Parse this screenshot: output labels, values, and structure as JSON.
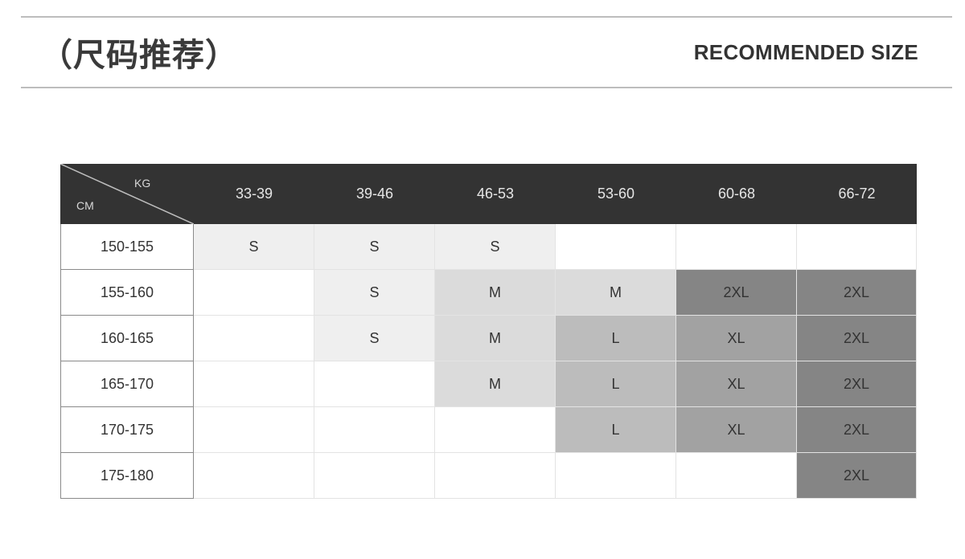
{
  "header": {
    "title_cn": "（尺码推荐）",
    "title_en": "RECOMMENDED SIZE"
  },
  "table": {
    "corner": {
      "col_unit": "KG",
      "row_unit": "CM"
    },
    "columns": [
      "33-39",
      "39-46",
      "46-53",
      "53-60",
      "60-68",
      "66-72"
    ],
    "rows": [
      {
        "label": "150-155",
        "cells": [
          "S",
          "S",
          "S",
          "",
          "",
          ""
        ],
        "shades": [
          1,
          1,
          1,
          0,
          0,
          0
        ]
      },
      {
        "label": "155-160",
        "cells": [
          "",
          "S",
          "M",
          "M",
          "2XL",
          "2XL"
        ],
        "shades": [
          0,
          1,
          2,
          2,
          5,
          5
        ]
      },
      {
        "label": "160-165",
        "cells": [
          "",
          "S",
          "M",
          "L",
          "XL",
          "2XL"
        ],
        "shades": [
          0,
          1,
          2,
          3,
          4,
          5
        ]
      },
      {
        "label": "165-170",
        "cells": [
          "",
          "",
          "M",
          "L",
          "XL",
          "2XL"
        ],
        "shades": [
          0,
          0,
          2,
          3,
          4,
          5
        ]
      },
      {
        "label": "170-175",
        "cells": [
          "",
          "",
          "",
          "L",
          "XL",
          "2XL"
        ],
        "shades": [
          0,
          0,
          0,
          3,
          4,
          5
        ]
      },
      {
        "label": "175-180",
        "cells": [
          "",
          "",
          "",
          "",
          "",
          "2XL"
        ],
        "shades": [
          0,
          0,
          0,
          0,
          0,
          5
        ]
      }
    ],
    "colors": {
      "header_bg": "#333333",
      "shade_levels": [
        "#ffffff",
        "#efefef",
        "#dbdbdb",
        "#bcbcbc",
        "#a2a2a2",
        "#858585"
      ]
    }
  }
}
